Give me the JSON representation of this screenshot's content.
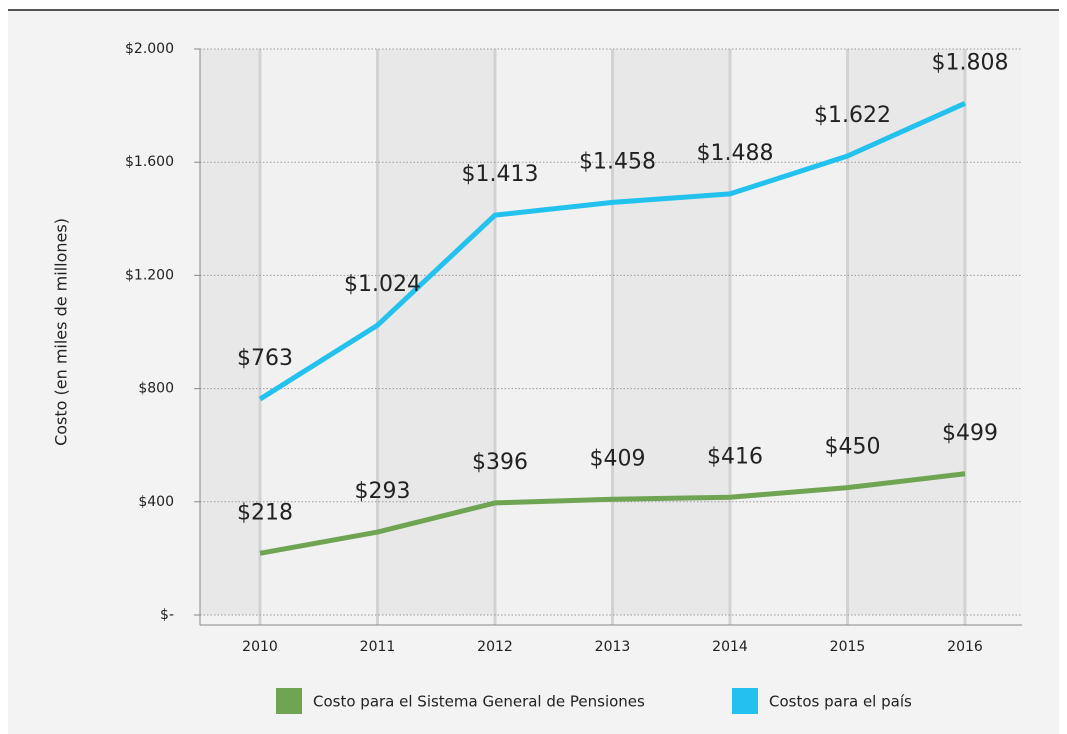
{
  "chart_data": {
    "type": "line",
    "ylabel": "Costo (en miles de millones)",
    "categories": [
      "2010",
      "2011",
      "2012",
      "2013",
      "2014",
      "2015",
      "2016"
    ],
    "series": [
      {
        "name": "Costo para el Sistema General de Pensiones",
        "color": "#6fa453",
        "values": [
          218,
          293,
          396,
          409,
          416,
          450,
          499
        ],
        "value_labels": [
          "$218",
          "$293",
          "$396",
          "$409",
          "$416",
          "$450",
          "$499"
        ]
      },
      {
        "name": "Costos para el país",
        "color": "#22c1ee",
        "values": [
          763,
          1024,
          1413,
          1458,
          1488,
          1622,
          1808
        ],
        "value_labels": [
          "$763",
          "$1.024",
          "$1.413",
          "$1.458",
          "$1.488",
          "$1.622",
          "$1.808"
        ]
      }
    ],
    "ylim": [
      0,
      2000
    ],
    "yticks": [
      {
        "value": 0,
        "label": "$-"
      },
      {
        "value": 400,
        "label": "$400"
      },
      {
        "value": 800,
        "label": "$800"
      },
      {
        "value": 1200,
        "label": "$1.200"
      },
      {
        "value": 1600,
        "label": "$1.600"
      },
      {
        "value": 2000,
        "label": "$2.000"
      }
    ],
    "grid": true,
    "legend": "bottom"
  }
}
